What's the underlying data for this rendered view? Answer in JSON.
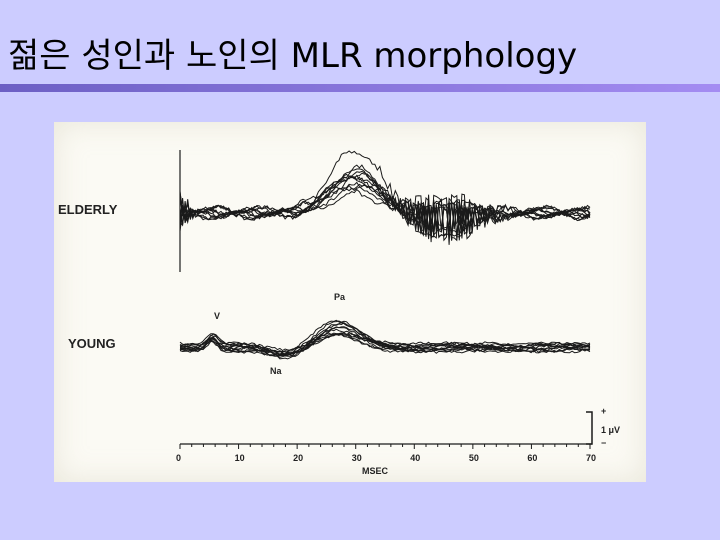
{
  "slide": {
    "title": "젊은 성인과 노인의 MLR morphology"
  },
  "figure": {
    "group_labels": {
      "elderly": "ELDERLY",
      "young": "YOUNG"
    },
    "peak_labels": {
      "v": "V",
      "pa": "Pa",
      "na": "Na"
    },
    "scale_label": "1 μV",
    "scale_plus": "+",
    "scale_minus": "−",
    "x_axis_label": "MSEC",
    "x_ticks": [
      "0",
      "10",
      "20",
      "30",
      "40",
      "50",
      "60",
      "70"
    ],
    "colors": {
      "background": "#ccccff",
      "rule": "#8b78e6",
      "trace": "#1a1a1a"
    }
  }
}
